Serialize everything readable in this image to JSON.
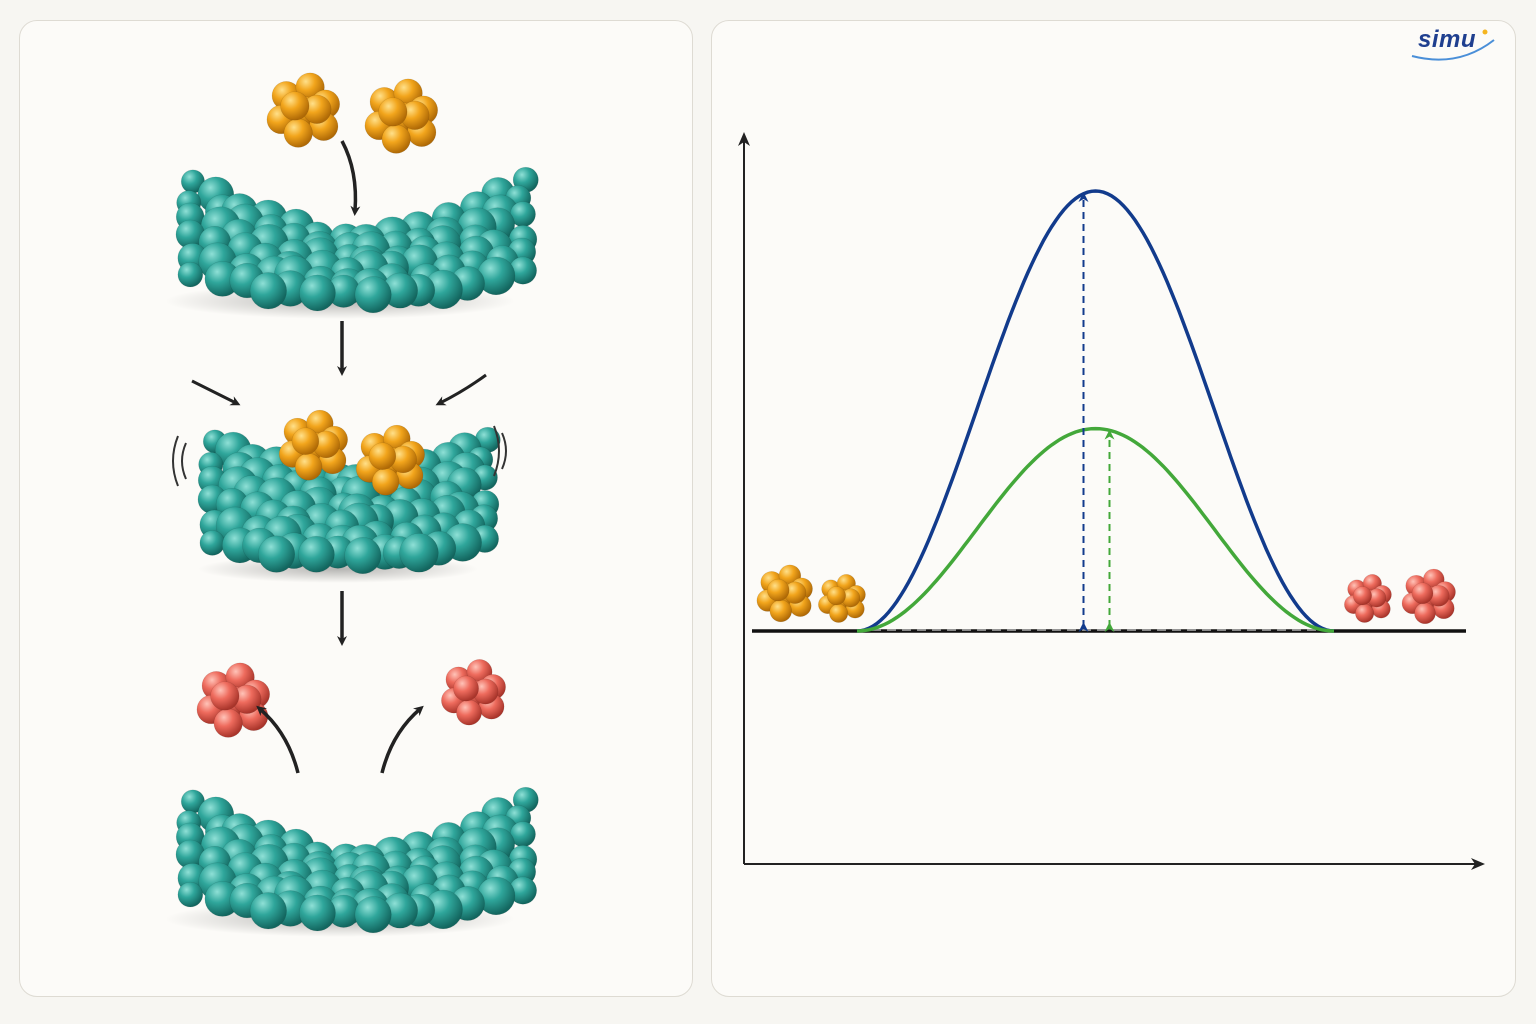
{
  "logo": {
    "text": "simu"
  },
  "colors": {
    "enzyme": "#2e9e94",
    "substrate": "#f0a21c",
    "product": "#ec6a5e",
    "uncatalyzed_curve": "#123b8c",
    "catalyzed_curve": "#43a83a",
    "axis": "#222222",
    "baseline_dashed": "#9a9a9a"
  },
  "left_panel": {
    "stages": [
      "substrates-approach-enzyme",
      "enzyme-substrate-complex",
      "products-released"
    ]
  },
  "chart_data": {
    "type": "line",
    "title": "",
    "xlabel": "",
    "ylabel": "",
    "series": [
      {
        "kind": "uncatalyzed",
        "peak": 1.0,
        "baseline": 0
      },
      {
        "kind": "catalyzed",
        "peak": 0.46,
        "baseline": 0
      }
    ],
    "start_icon": "substrate-pair",
    "end_icon": "product-pair"
  }
}
